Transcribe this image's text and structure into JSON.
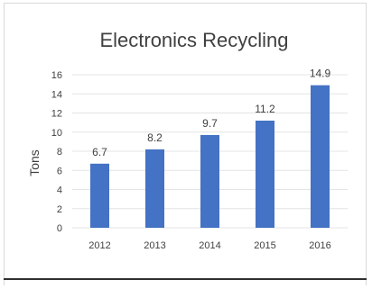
{
  "chart_data": {
    "type": "bar",
    "title": "Electronics Recycling",
    "xlabel": "",
    "ylabel": "Tons",
    "categories": [
      "2012",
      "2013",
      "2014",
      "2015",
      "2016"
    ],
    "values": [
      6.7,
      8.2,
      9.7,
      11.2,
      14.9
    ],
    "value_labels": [
      "6.7",
      "8.2",
      "9.7",
      "11.2",
      "14.9"
    ],
    "ylim": [
      0,
      16
    ],
    "yticks": [
      0,
      2,
      4,
      6,
      8,
      10,
      12,
      14,
      16
    ],
    "ytick_labels": [
      "0",
      "2",
      "4",
      "6",
      "8",
      "10",
      "12",
      "14",
      "16"
    ],
    "grid": true,
    "legend": "none",
    "colors": {
      "bar": "#4472c4",
      "grid": "#e4e4e4",
      "text": "#404040"
    }
  }
}
